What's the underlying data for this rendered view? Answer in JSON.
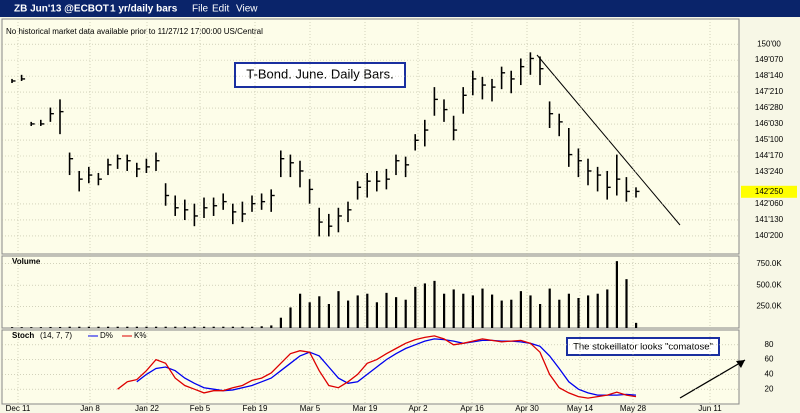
{
  "toolbar": {
    "symbol": "ZB Jun'13 @ECBOT",
    "period": "1 yr/daily bars",
    "menus": [
      "File",
      "Edit",
      "View"
    ]
  },
  "notice": "No historical market data available prior to 11/27/12 17:00:00 US/Central",
  "x_axis_labels": [
    "Dec 11",
    "Jan 8",
    "Jan 22",
    "Feb 5",
    "Feb 19",
    "Mar 5",
    "Mar 19",
    "Apr 2",
    "Apr 16",
    "Apr 30",
    "May 14",
    "May 28",
    "Jun 11"
  ],
  "chart_data": [
    {
      "type": "ohlc",
      "annotation": "T-Bond. June. Daily Bars.",
      "color": "#000000",
      "ylim": [
        139.74,
        151.23
      ],
      "yticks": [
        {
          "value": 150,
          "label": "150'00"
        },
        {
          "value": 149.21875,
          "label": "149'070"
        },
        {
          "value": 148.4375,
          "label": "148'140"
        },
        {
          "value": 147.65625,
          "label": "147'210"
        },
        {
          "value": 146.875,
          "label": "146'280"
        },
        {
          "value": 146.09375,
          "label": "146'030"
        },
        {
          "value": 145.3125,
          "label": "145'100"
        },
        {
          "value": 144.53125,
          "label": "144'170"
        },
        {
          "value": 143.75,
          "label": "143'240"
        },
        {
          "value": 142.1875,
          "label": "142'060"
        },
        {
          "value": 141.40625,
          "label": "141'130"
        },
        {
          "value": 140.625,
          "label": "140'200"
        }
      ],
      "last_price": {
        "value": 142.78125,
        "label": "142'250"
      },
      "high": [
        148.3,
        148.5,
        146.2,
        146.3,
        146.9,
        147.3,
        144.7,
        143.8,
        144.0,
        143.7,
        144.4,
        144.6,
        144.6,
        144.2,
        144.4,
        144.7,
        143.2,
        142.6,
        142.4,
        142.2,
        142.5,
        142.5,
        142.7,
        142.2,
        142.3,
        142.6,
        142.7,
        142.9,
        144.8,
        144.6,
        144.3,
        143.4,
        142.0,
        141.7,
        142.0,
        142.3,
        143.3,
        143.7,
        143.8,
        143.9,
        144.6,
        144.5,
        145.6,
        146.3,
        147.9,
        147.3,
        146.5,
        147.9,
        148.7,
        148.4,
        148.3,
        148.9,
        148.7,
        149.3,
        149.6,
        149.4,
        147.2,
        146.6,
        145.9,
        144.9,
        144.4,
        144.0,
        143.8,
        144.6,
        143.5,
        143.0
      ],
      "low": [
        148.1,
        148.2,
        146.0,
        146.0,
        146.2,
        145.6,
        143.6,
        142.8,
        143.2,
        143.1,
        143.6,
        143.9,
        143.8,
        143.5,
        143.7,
        143.8,
        142.1,
        141.6,
        141.4,
        141.1,
        141.5,
        141.6,
        141.9,
        141.2,
        141.3,
        141.8,
        141.9,
        141.8,
        143.5,
        143.5,
        143.0,
        142.2,
        140.6,
        140.6,
        140.8,
        141.3,
        142.4,
        142.5,
        142.8,
        142.9,
        143.6,
        143.5,
        144.8,
        145.0,
        146.5,
        146.2,
        145.3,
        146.6,
        147.5,
        147.3,
        147.2,
        147.8,
        147.6,
        148.0,
        148.5,
        148.0,
        145.9,
        145.5,
        144.0,
        143.5,
        143.1,
        142.8,
        142.4,
        142.6,
        142.3,
        142.5
      ],
      "close": [
        148.2,
        148.3,
        146.1,
        146.1,
        146.6,
        146.7,
        144.4,
        143.4,
        143.6,
        143.4,
        144.1,
        144.4,
        144.3,
        143.9,
        144.0,
        144.3,
        142.6,
        142.0,
        141.9,
        141.6,
        142.0,
        142.1,
        142.3,
        141.8,
        141.7,
        142.2,
        142.3,
        142.6,
        144.4,
        144.2,
        143.8,
        142.9,
        141.3,
        141.1,
        141.6,
        141.9,
        143.0,
        143.3,
        143.3,
        143.4,
        144.3,
        144.1,
        145.3,
        145.8,
        147.3,
        146.8,
        145.8,
        147.5,
        148.3,
        148.0,
        147.9,
        148.6,
        148.3,
        148.9,
        149.3,
        148.8,
        146.6,
        146.2,
        144.6,
        144.3,
        143.8,
        143.6,
        143.0,
        143.4,
        142.8,
        142.8
      ]
    },
    {
      "type": "bar",
      "title": "Volume",
      "color": "#000000",
      "ylim": [
        0,
        840000
      ],
      "yticks": [
        {
          "value": 250000,
          "label": "250.0K"
        },
        {
          "value": 500000,
          "label": "500.0K"
        },
        {
          "value": 750000,
          "label": "750.0K"
        }
      ],
      "values": [
        10000,
        10000,
        10000,
        10000,
        12000,
        12000,
        15000,
        15000,
        15000,
        15000,
        15000,
        15000,
        15000,
        15000,
        15000,
        15000,
        15000,
        15000,
        15000,
        15000,
        15000,
        15000,
        15000,
        15000,
        15000,
        15000,
        20000,
        30000,
        120000,
        240000,
        400000,
        300000,
        370000,
        280000,
        430000,
        320000,
        380000,
        400000,
        300000,
        410000,
        360000,
        330000,
        480000,
        520000,
        550000,
        400000,
        450000,
        400000,
        380000,
        460000,
        390000,
        320000,
        330000,
        430000,
        380000,
        280000,
        460000,
        330000,
        400000,
        350000,
        380000,
        400000,
        450000,
        780000,
        570000,
        60000
      ]
    },
    {
      "type": "line",
      "title": "Stoch",
      "params": "(14, 7, 7)",
      "ylim": [
        0,
        100
      ],
      "yticks": [
        20,
        40,
        60,
        80
      ],
      "annotation": "The stokeillator looks \"comatose\"",
      "series": [
        {
          "name": "D%",
          "color": "#0000ee",
          "values": [
            null,
            null,
            null,
            null,
            null,
            null,
            null,
            null,
            null,
            null,
            null,
            null,
            null,
            30,
            40,
            48,
            50,
            45,
            35,
            28,
            22,
            20,
            18,
            19,
            22,
            25,
            30,
            35,
            45,
            55,
            65,
            70,
            65,
            50,
            35,
            28,
            30,
            40,
            50,
            60,
            68,
            75,
            80,
            85,
            88,
            87,
            85,
            82,
            84,
            86,
            86,
            85,
            85,
            84,
            82,
            78,
            65,
            48,
            30,
            20,
            15,
            12,
            12,
            12,
            13,
            12
          ]
        },
        {
          "name": "K%",
          "color": "#dd0000",
          "values": [
            null,
            null,
            null,
            null,
            null,
            null,
            null,
            null,
            null,
            null,
            null,
            20,
            30,
            33,
            45,
            60,
            55,
            35,
            25,
            20,
            15,
            18,
            18,
            22,
            25,
            32,
            35,
            42,
            55,
            68,
            72,
            70,
            45,
            25,
            22,
            30,
            40,
            55,
            60,
            68,
            75,
            82,
            87,
            90,
            92,
            88,
            80,
            82,
            85,
            88,
            86,
            84,
            85,
            86,
            82,
            70,
            40,
            22,
            15,
            10,
            8,
            10,
            12,
            16,
            12,
            10
          ]
        }
      ]
    }
  ]
}
